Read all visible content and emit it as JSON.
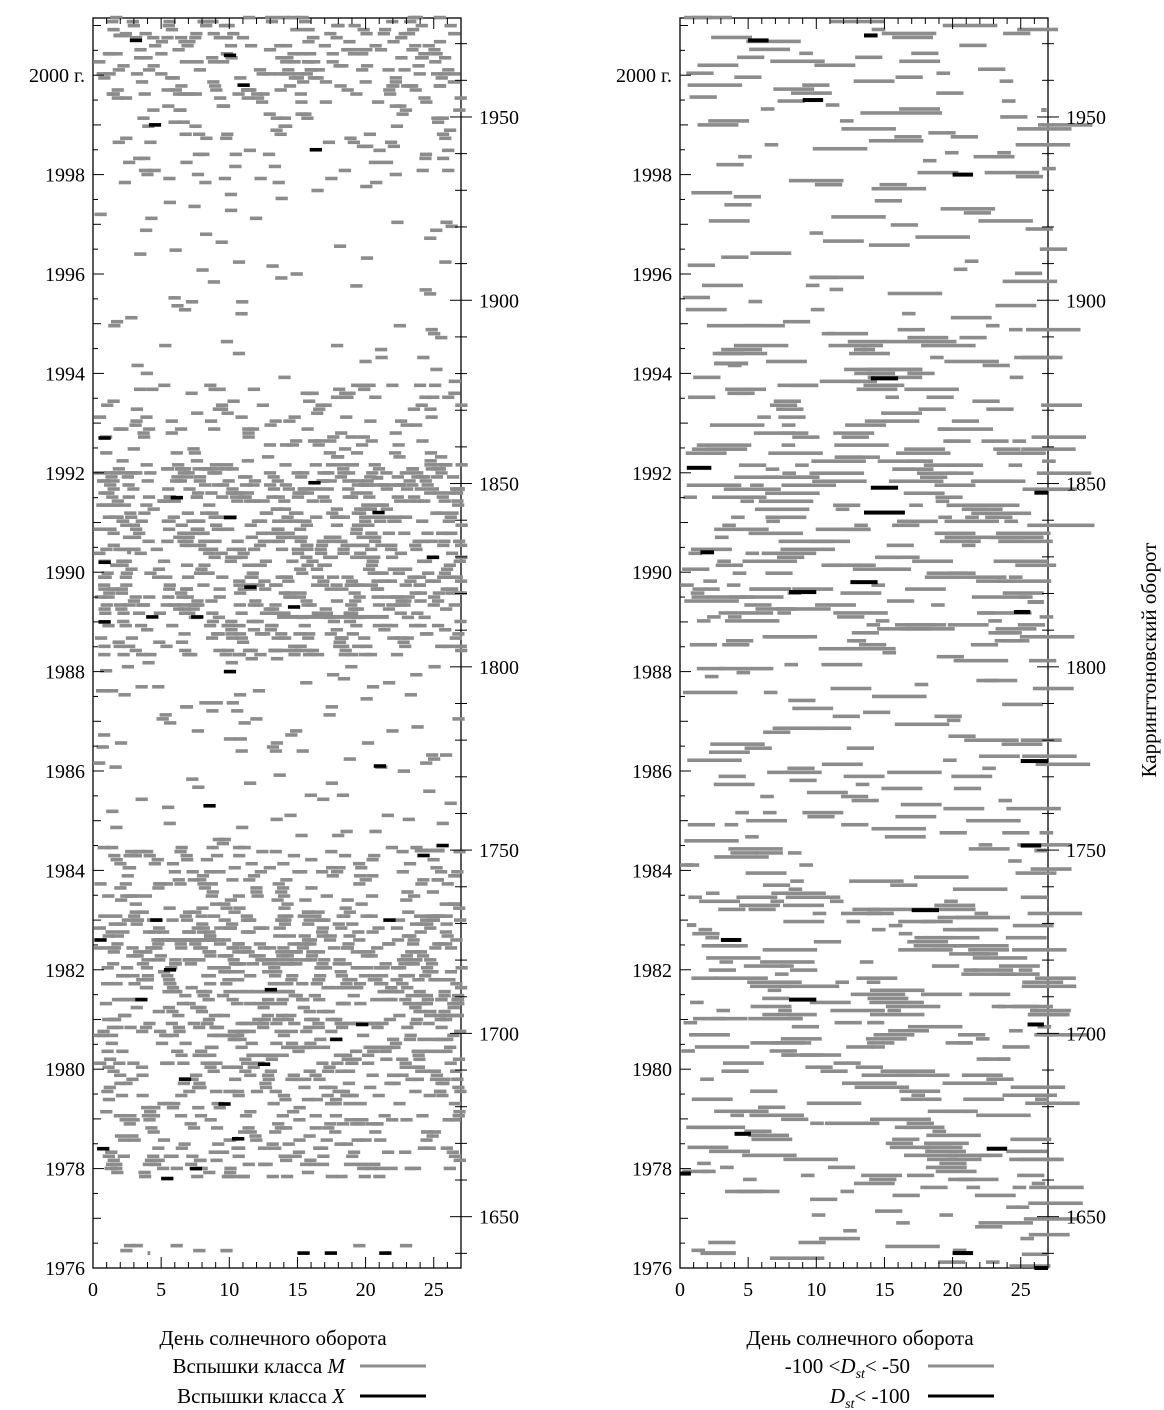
{
  "chart_data": [
    {
      "type": "scatter",
      "panel": "left",
      "xlabel": "День солнечного оборота",
      "xlim": [
        0,
        27
      ],
      "x_ticks": [
        "0",
        "5",
        "10",
        "15",
        "20",
        "25"
      ],
      "left_axis": {
        "ticks": [
          "1976",
          "1978",
          "1980",
          "1982",
          "1984",
          "1986",
          "1988",
          "1990",
          "1992",
          "1994",
          "1996",
          "1998",
          "2000 г."
        ],
        "range_years": [
          1976,
          2001.2
        ]
      },
      "right_axis": {
        "ticks": [
          "1650",
          "1700",
          "1750",
          "1800",
          "1850",
          "1900",
          "1950"
        ],
        "range_rotations": [
          1636,
          1977
        ]
      },
      "legend": [
        {
          "label": "Вспышки класса ",
          "label_italic": "M",
          "color": "#8c8c8c"
        },
        {
          "label": "Вспышки класса ",
          "label_italic": "X",
          "color": "#000000"
        }
      ],
      "series": [
        {
          "name": "Вспышки класса M",
          "color": "#8c8c8c",
          "marker": "dash",
          "activity_bands": [
            [
              1976.3,
              1976.5,
              0.15
            ],
            [
              1977.8,
              1980.0,
              0.35
            ],
            [
              1980.0,
              1982.0,
              0.55
            ],
            [
              1982.0,
              1983.2,
              0.6
            ],
            [
              1983.2,
              1984.5,
              0.3
            ],
            [
              1984.5,
              1986.2,
              0.06
            ],
            [
              1986.2,
              1988.3,
              0.08
            ],
            [
              1988.3,
              1989.3,
              0.5
            ],
            [
              1989.3,
              1990.5,
              0.6
            ],
            [
              1990.5,
              1992.2,
              0.6
            ],
            [
              1992.2,
              1993.8,
              0.2
            ],
            [
              1993.8,
              1997.8,
              0.04
            ],
            [
              1997.8,
              1999.5,
              0.15
            ],
            [
              1999.5,
              2001.2,
              0.35
            ]
          ],
          "highlights": [
            [
              1976.3,
              4,
              0.2
            ],
            [
              1978.6,
              10.4,
              0.25
            ],
            [
              1982.6,
              4.5,
              4.6
            ],
            [
              1984.4,
              23.6,
              2.2
            ],
            [
              1989.1,
              13.5,
              8.2
            ],
            [
              1990.4,
              2.5,
              0.3
            ],
            [
              1991.9,
              20.5,
              0.8
            ],
            [
              2000.8,
              1.5,
              1.3
            ]
          ]
        },
        {
          "name": "Вспышки класса X",
          "color": "#000000",
          "marker": "dash",
          "points": [
            [
              1976.3,
              15
            ],
            [
              1976.3,
              17
            ],
            [
              1976.3,
              21
            ],
            [
              1977.8,
              5
            ],
            [
              1978.0,
              7.1
            ],
            [
              1978.4,
              0.3
            ],
            [
              1978.6,
              10.2
            ],
            [
              1979.3,
              9.2
            ],
            [
              1979.8,
              6.3
            ],
            [
              1980.1,
              12.1
            ],
            [
              1980.6,
              17.4
            ],
            [
              1980.9,
              19.3
            ],
            [
              1981.4,
              3.1
            ],
            [
              1981.6,
              12.6
            ],
            [
              1982.0,
              5.2
            ],
            [
              1982.6,
              0.1
            ],
            [
              1983.0,
              4.2
            ],
            [
              1983.0,
              21.3
            ],
            [
              1984.3,
              23.8
            ],
            [
              1984.5,
              25.2
            ],
            [
              1985.3,
              8.1
            ],
            [
              1986.1,
              20.6
            ],
            [
              1988.0,
              9.6
            ],
            [
              1989.0,
              0.4
            ],
            [
              1989.1,
              3.9
            ],
            [
              1989.1,
              7.2
            ],
            [
              1989.3,
              14.3
            ],
            [
              1989.7,
              11.1
            ],
            [
              1990.2,
              0.4
            ],
            [
              1990.3,
              24.5
            ],
            [
              1991.1,
              9.6
            ],
            [
              1991.2,
              20.5
            ],
            [
              1991.5,
              5.7
            ],
            [
              1991.8,
              15.8
            ],
            [
              1992.7,
              0.4
            ],
            [
              1998.5,
              15.9
            ],
            [
              1999.0,
              4.1
            ],
            [
              1999.8,
              10.6
            ],
            [
              2000.4,
              9.6
            ],
            [
              2000.7,
              2.7
            ]
          ]
        }
      ]
    },
    {
      "type": "scatter",
      "panel": "right",
      "xlabel": "День солнечного оборота",
      "ylabel_right": "Каррингтоновский оборот",
      "xlim": [
        0,
        27
      ],
      "x_ticks": [
        "0",
        "5",
        "10",
        "15",
        "20",
        "25"
      ],
      "left_axis": {
        "ticks": [
          "1976",
          "1978",
          "1980",
          "1982",
          "1984",
          "1986",
          "1988",
          "1990",
          "1992",
          "1994",
          "1996",
          "1998",
          "2000 г."
        ],
        "range_years": [
          1976,
          2001.2
        ]
      },
      "right_axis": {
        "ticks": [
          "1650",
          "1700",
          "1750",
          "1800",
          "1850",
          "1900",
          "1950"
        ],
        "range_rotations": [
          1636,
          1977
        ]
      },
      "legend": [
        {
          "label_pre": "-100 <",
          "label_italic": "D",
          "label_sub": "st",
          "label_post": "< -50",
          "color": "#8c8c8c"
        },
        {
          "label_pre": "",
          "label_italic": "D",
          "label_sub": "st",
          "label_post": "< -100",
          "color": "#000000"
        }
      ],
      "series": [
        {
          "name": "-100 < Dst < -50",
          "color": "#8c8c8c",
          "marker": "dash",
          "activity_bands": [
            [
              1976.0,
              1977.5,
              0.05
            ],
            [
              1977.5,
              1980.0,
              0.1
            ],
            [
              1980.0,
              1983.5,
              0.13
            ],
            [
              1983.5,
              1986.5,
              0.07
            ],
            [
              1986.5,
              1988.5,
              0.06
            ],
            [
              1988.5,
              1990.5,
              0.14
            ],
            [
              1990.5,
              1993.0,
              0.13
            ],
            [
              1993.0,
              1995.0,
              0.08
            ],
            [
              1995.0,
              1998.0,
              0.04
            ],
            [
              1998.0,
              2001.2,
              0.06
            ]
          ],
          "highlights": [
            [
              1976.3,
              1.5,
              2.6
            ],
            [
              1982.9,
              0.5,
              0.7
            ],
            [
              1984.4,
              26,
              1
            ],
            [
              1989.4,
              25.5,
              1.2
            ],
            [
              1994.2,
              2.5,
              2.5
            ],
            [
              1999.3,
              26.5,
              0.4
            ]
          ]
        },
        {
          "name": "Dst < -100",
          "color": "#000000",
          "marker": "dash",
          "runs": [
            [
              1976.0,
              26.0,
              1.0
            ],
            [
              1976.3,
              20.0,
              1.5
            ],
            [
              1977.9,
              0.0,
              0.8
            ],
            [
              1978.4,
              22.5,
              1.5
            ],
            [
              1978.7,
              4.0,
              1.2
            ],
            [
              1980.9,
              25.5,
              1.2
            ],
            [
              1981.4,
              8.0,
              2.0
            ],
            [
              1982.6,
              3.0,
              1.5
            ],
            [
              1983.2,
              17.0,
              2.0
            ],
            [
              1984.5,
              25.0,
              1.5
            ],
            [
              1986.2,
              25.0,
              2.0
            ],
            [
              1989.2,
              24.5,
              1.2
            ],
            [
              1989.6,
              8.0,
              2.0
            ],
            [
              1989.8,
              12.5,
              2.0
            ],
            [
              1990.4,
              1.5,
              1.0
            ],
            [
              1991.2,
              13.5,
              3.0
            ],
            [
              1991.6,
              26.0,
              1.0
            ],
            [
              1991.7,
              14.0,
              2.0
            ],
            [
              1992.1,
              0.5,
              1.8
            ],
            [
              1993.9,
              14.0,
              2.0
            ],
            [
              1998.0,
              20.0,
              1.5
            ],
            [
              1999.5,
              9.0,
              1.5
            ],
            [
              2000.7,
              5.0,
              1.5
            ],
            [
              2000.8,
              13.5,
              1.0
            ]
          ]
        }
      ]
    }
  ]
}
